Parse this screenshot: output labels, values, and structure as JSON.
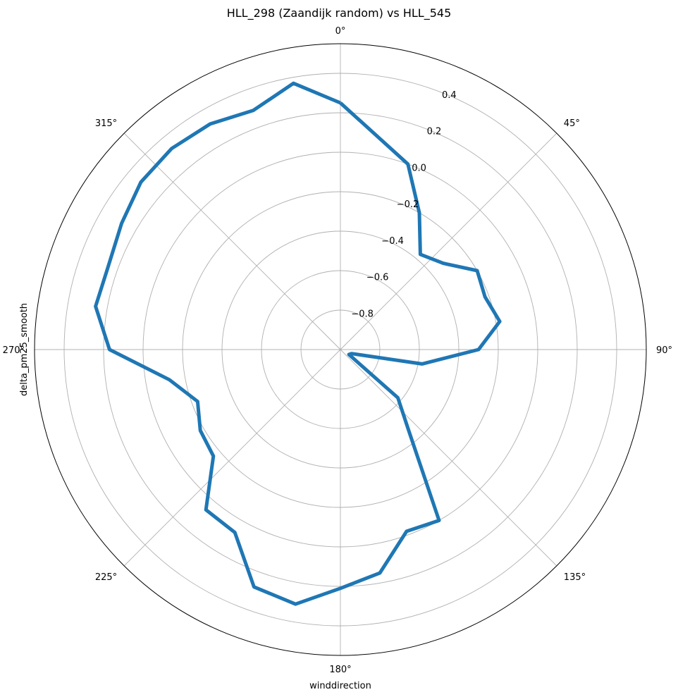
{
  "chart_data": {
    "type": "line",
    "projection": "polar",
    "title": "HLL_298 (Zaandijk random) vs HLL_545",
    "xlabel": "winddirection",
    "ylabel": "delta_pm25_smooth",
    "theta_zero": "N",
    "theta_direction": "clockwise",
    "rlim": [
      -1.0,
      0.55
    ],
    "grid": true,
    "theta_ticks": [
      0,
      45,
      90,
      135,
      180,
      225,
      270,
      315
    ],
    "theta_tick_labels": [
      "0°",
      "45°",
      "90°",
      "135°",
      "180°",
      "225°",
      "270°",
      "315°"
    ],
    "r_ticks": [
      -0.8,
      -0.6,
      -0.4,
      -0.2,
      0.0,
      0.2,
      0.4
    ],
    "r_tick_labels": [
      "−0.8",
      "−0.6",
      "−0.4",
      "−0.2",
      "0.0",
      "0.2",
      "0.4"
    ],
    "r_label_angle": 22.5,
    "series": [
      {
        "color": "#1f77b4",
        "theta": [
          0,
          20,
          30,
          40,
          50,
          60,
          70,
          80,
          90,
          100,
          110,
          120,
          130,
          140,
          150,
          160,
          170,
          180,
          190,
          200,
          210,
          220,
          230,
          240,
          250,
          260,
          270,
          280,
          290,
          300,
          310,
          320,
          330,
          340,
          350,
          0
        ],
        "r": [
          0.25,
          0.0,
          -0.2,
          -0.37,
          -0.32,
          -0.2,
          -0.22,
          -0.18,
          -0.3,
          -0.58,
          -0.94,
          -0.95,
          -0.62,
          -0.46,
          0.0,
          -0.02,
          0.15,
          0.21,
          0.31,
          0.28,
          0.07,
          0.06,
          -0.16,
          -0.18,
          -0.23,
          -0.12,
          0.17,
          0.26,
          0.25,
          0.28,
          0.32,
          0.33,
          0.32,
          0.29,
          0.37,
          0.25
        ]
      }
    ]
  }
}
